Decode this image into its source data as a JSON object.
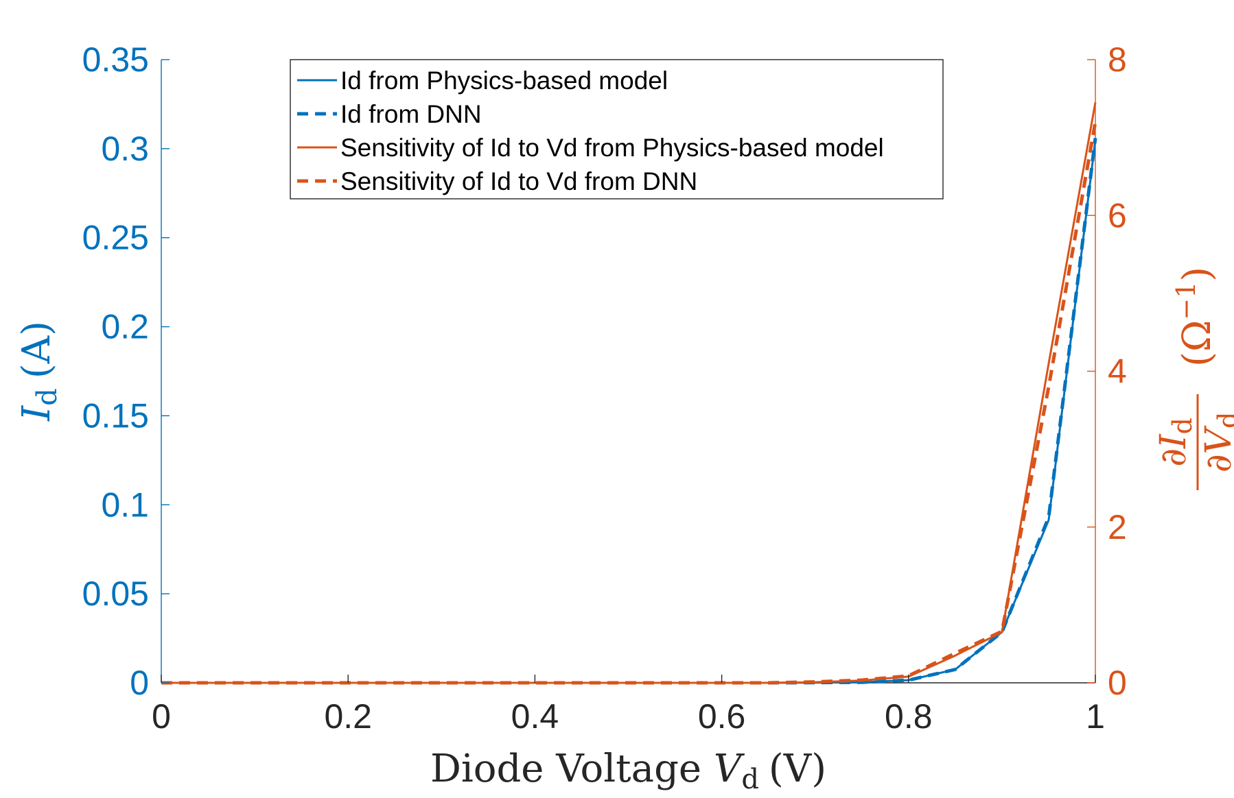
{
  "chart_data": {
    "type": "line",
    "x": [
      0,
      0.05,
      0.1,
      0.15,
      0.2,
      0.25,
      0.3,
      0.35,
      0.4,
      0.45,
      0.5,
      0.55,
      0.6,
      0.65,
      0.7,
      0.75,
      0.8,
      0.85,
      0.9,
      0.95,
      1.0
    ],
    "xlim": [
      0,
      1
    ],
    "ylim_left": [
      0,
      0.35
    ],
    "ylim_right": [
      0,
      8
    ],
    "x_ticks": [
      "0",
      "0.2",
      "0.4",
      "0.6",
      "0.8",
      "1"
    ],
    "y_ticks_left": [
      "0",
      "0.05",
      "0.1",
      "0.15",
      "0.2",
      "0.25",
      "0.3",
      "0.35"
    ],
    "y_ticks_right": [
      "0",
      "2",
      "4",
      "6",
      "8"
    ],
    "xlabel": {
      "main": "Diode Voltage ",
      "var": "V",
      "sub": "d",
      "unit": "(V)"
    },
    "ylabel_left": {
      "var": "I",
      "sub": "d",
      "unit": "(A)"
    },
    "ylabel_right": {
      "num": "∂I",
      "num_sub": "d",
      "den": "∂V",
      "den_sub": "d",
      "unit": "(Ω",
      "unit_sup": "−1",
      "unit_close": ")"
    },
    "legend_position": "top-center",
    "colors": {
      "left_axis": "#0072BD",
      "right_axis": "#D95319",
      "axis_black": "#262626"
    },
    "series": [
      {
        "name": "Id from Physics-based model",
        "axis": "left",
        "style": "solid",
        "color": "#0072BD",
        "values": [
          0,
          0,
          0,
          0,
          0,
          0,
          0,
          0,
          0,
          0,
          0,
          0,
          0,
          0,
          0.0001,
          0.0003,
          0.0015,
          0.0075,
          0.0285,
          0.0915,
          0.305
        ]
      },
      {
        "name": "Id from DNN",
        "axis": "left",
        "style": "dashed",
        "color": "#0072BD",
        "values": [
          0,
          0,
          0,
          0,
          0,
          0,
          0,
          0,
          0,
          0,
          0,
          0,
          0,
          0,
          0.0001,
          0.0003,
          0.0015,
          0.0075,
          0.0285,
          0.093,
          0.306
        ]
      },
      {
        "name": "Sensitivity of Id to Vd from Physics-based model",
        "axis": "right",
        "style": "solid",
        "color": "#D95319",
        "values": [
          0,
          0,
          0,
          0,
          0,
          0,
          0,
          0,
          0,
          0,
          0,
          0,
          0,
          0,
          0.008,
          0.03,
          0.08,
          0.35,
          0.65,
          4.1,
          7.45
        ]
      },
      {
        "name": "Sensitivity of Id to Vd from DNN",
        "axis": "right",
        "style": "dashed",
        "color": "#D95319",
        "values": [
          0,
          0,
          0,
          0,
          0,
          0,
          0,
          0,
          0,
          0,
          0,
          0,
          0,
          0,
          0.012,
          0.035,
          0.09,
          0.38,
          0.66,
          3.8,
          7.2
        ]
      }
    ]
  }
}
